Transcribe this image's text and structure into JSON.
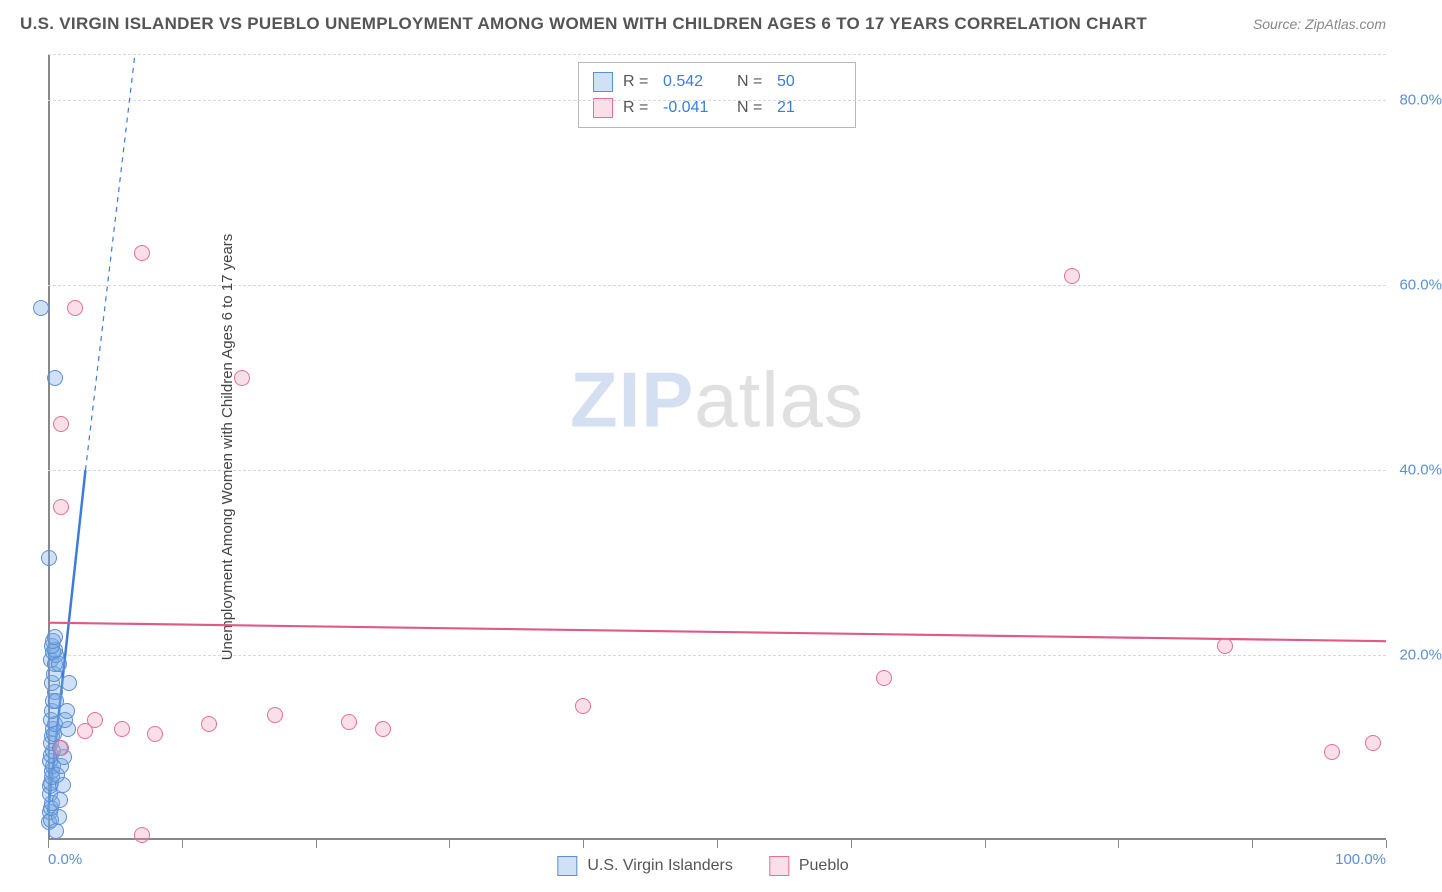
{
  "header": {
    "title": "U.S. VIRGIN ISLANDER VS PUEBLO UNEMPLOYMENT AMONG WOMEN WITH CHILDREN AGES 6 TO 17 YEARS CORRELATION CHART",
    "source": "Source: ZipAtlas.com"
  },
  "watermark": {
    "strong": "ZIP",
    "light": "atlas"
  },
  "chart": {
    "type": "scatter",
    "ylabel": "Unemployment Among Women with Children Ages 6 to 17 years",
    "background_color": "#ffffff",
    "grid_color": "#d8d8d8",
    "axis_color": "#888888",
    "tick_font_color": "#5b8fd6",
    "tick_fontsize": 15,
    "label_fontsize": 15,
    "xlim": [
      0,
      100
    ],
    "ylim": [
      0,
      85
    ],
    "yticks": [
      20,
      40,
      60,
      80
    ],
    "ytick_labels": [
      "20.0%",
      "40.0%",
      "60.0%",
      "80.0%"
    ],
    "xticks": [
      0,
      10,
      20,
      30,
      40,
      50,
      60,
      70,
      80,
      90,
      100
    ],
    "xtick_labels_shown": {
      "0": "0.0%",
      "100": "100.0%"
    },
    "marker_radius": 8,
    "marker_border_width": 1.5,
    "series": [
      {
        "name": "U.S. Virgin Islanders",
        "fill": "rgba(120,170,225,0.35)",
        "stroke": "#5b8fd6",
        "R": "0.542",
        "N": "50",
        "trend": {
          "x1": 0,
          "y1": 3,
          "x2": 2.8,
          "y2": 40,
          "dash_ext": {
            "x2": 6.5,
            "y2": 85
          },
          "color": "#3b7dd8",
          "width": 2.5
        },
        "points": [
          [
            0.1,
            2.0
          ],
          [
            0.15,
            3.0
          ],
          [
            0.2,
            2.2
          ],
          [
            0.25,
            3.5
          ],
          [
            0.3,
            4.0
          ],
          [
            0.12,
            5.0
          ],
          [
            0.18,
            5.8
          ],
          [
            0.22,
            6.2
          ],
          [
            0.28,
            6.8
          ],
          [
            0.3,
            7.5
          ],
          [
            0.35,
            8.0
          ],
          [
            0.15,
            8.5
          ],
          [
            0.2,
            9.2
          ],
          [
            0.4,
            9.6
          ],
          [
            0.25,
            10.5
          ],
          [
            0.3,
            11.2
          ],
          [
            0.35,
            12.0
          ],
          [
            0.45,
            11.5
          ],
          [
            0.5,
            12.6
          ],
          [
            0.2,
            13.0
          ],
          [
            0.3,
            14.0
          ],
          [
            0.4,
            15.0
          ],
          [
            0.5,
            16.0
          ],
          [
            0.3,
            17.0
          ],
          [
            0.45,
            18.0
          ],
          [
            0.25,
            19.5
          ],
          [
            0.55,
            19.0
          ],
          [
            0.6,
            20.0
          ],
          [
            0.4,
            20.3
          ],
          [
            0.5,
            20.6
          ],
          [
            0.3,
            21.0
          ],
          [
            0.4,
            21.5
          ],
          [
            -0.5,
            57.5
          ],
          [
            0.5,
            50.0
          ],
          [
            0.5,
            22.0
          ],
          [
            0.1,
            30.5
          ],
          [
            0.6,
            1.0
          ],
          [
            0.8,
            2.5
          ],
          [
            0.9,
            4.3
          ],
          [
            1.1,
            6.0
          ],
          [
            0.7,
            7.0
          ],
          [
            1.0,
            8.0
          ],
          [
            1.2,
            9.0
          ],
          [
            0.9,
            10.0
          ],
          [
            1.5,
            12.0
          ],
          [
            1.3,
            13.0
          ],
          [
            1.4,
            14.0
          ],
          [
            0.6,
            15.0
          ],
          [
            1.6,
            17.0
          ],
          [
            0.8,
            19.0
          ]
        ]
      },
      {
        "name": "Pueblo",
        "fill": "rgba(240,150,180,0.30)",
        "stroke": "#e36f9a",
        "R": "-0.041",
        "N": "21",
        "trend": {
          "x1": 0,
          "y1": 23.5,
          "x2": 100,
          "y2": 21.5,
          "color": "#e05a88",
          "width": 2.2
        },
        "points": [
          [
            2.8,
            11.8
          ],
          [
            3.5,
            13.0
          ],
          [
            5.5,
            12.0
          ],
          [
            8.0,
            11.5
          ],
          [
            12.0,
            12.5
          ],
          [
            17.0,
            13.5
          ],
          [
            22.5,
            12.8
          ],
          [
            25.0,
            12.0
          ],
          [
            40.0,
            14.5
          ],
          [
            62.5,
            17.5
          ],
          [
            88.0,
            21.0
          ],
          [
            96.0,
            9.5
          ],
          [
            99.0,
            10.5
          ],
          [
            7.0,
            0.5
          ],
          [
            1.0,
            10.0
          ],
          [
            2.0,
            57.5
          ],
          [
            7.0,
            63.5
          ],
          [
            14.5,
            50.0
          ],
          [
            1.0,
            45.0
          ],
          [
            1.0,
            36.0
          ],
          [
            76.5,
            61.0
          ]
        ]
      }
    ]
  },
  "legend_bottom": [
    {
      "label": "U.S. Virgin Islanders",
      "fill": "rgba(120,170,225,0.35)",
      "stroke": "#5b8fd6"
    },
    {
      "label": "Pueblo",
      "fill": "rgba(240,150,180,0.30)",
      "stroke": "#e36f9a"
    }
  ]
}
